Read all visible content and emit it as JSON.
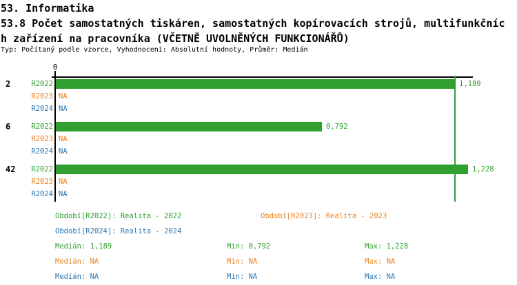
{
  "title": {
    "line1": "53. Informatika",
    "line2": "53.8 Počet samostatných tiskáren, samostatných kopírovacích strojů, multifunkčníc",
    "line3": "h zařízení na pracovníka (VČETNĚ UVOLNĚNÝCH FUNKCIONÁŘŮ)",
    "meta": "Typ: Počítaný podle vzorce, Vyhodnocení: Absolutní hodnoty, Průměr: Medián"
  },
  "colors": {
    "r2022": "#2FA02F",
    "r2023": "#EC821E",
    "r2024": "#2B76B2",
    "axis": "#000000"
  },
  "chart_data": {
    "type": "bar",
    "orientation": "horizontal",
    "title": "53.8 Počet samostatných tiskáren, samostatných kopírovacích strojů, multifunkčních zařízení na pracovníka (VČETNĚ UVOLNĚNÝCH FUNKCIONÁŘŮ)",
    "axis_zero_label": "0",
    "xlim": [
      0,
      1.25
    ],
    "grid": false,
    "legend_position": "bottom",
    "median_line_value": 1.189,
    "categories": [
      "2",
      "6",
      "42"
    ],
    "series": [
      {
        "name": "R2022",
        "legend": "Realita - 2022",
        "values": [
          1.189,
          0.792,
          1.228
        ],
        "displays": [
          "1,189",
          "0,792",
          "1,228"
        ]
      },
      {
        "name": "R2023",
        "legend": "Realita - 2023",
        "values": [
          null,
          null,
          null
        ],
        "displays": [
          "NA",
          "NA",
          "NA"
        ]
      },
      {
        "name": "R2024",
        "legend": "Realita - 2024",
        "values": [
          null,
          null,
          null
        ],
        "displays": [
          "NA",
          "NA",
          "NA"
        ]
      }
    ]
  },
  "legend": {
    "r2022": "Období[R2022]: Realita - 2022",
    "r2023": "Období[R2023]: Realita - 2023",
    "r2024": "Období[R2024]: Realita - 2024"
  },
  "stats": {
    "rows": [
      {
        "median": "Medián: 1,189",
        "min": "Min: 0,792",
        "max": "Max: 1,228"
      },
      {
        "median": "Medián: NA",
        "min": "Min: NA",
        "max": "Max: NA"
      },
      {
        "median": "Medián: NA",
        "min": "Min: NA",
        "max": "Max: NA"
      }
    ]
  }
}
